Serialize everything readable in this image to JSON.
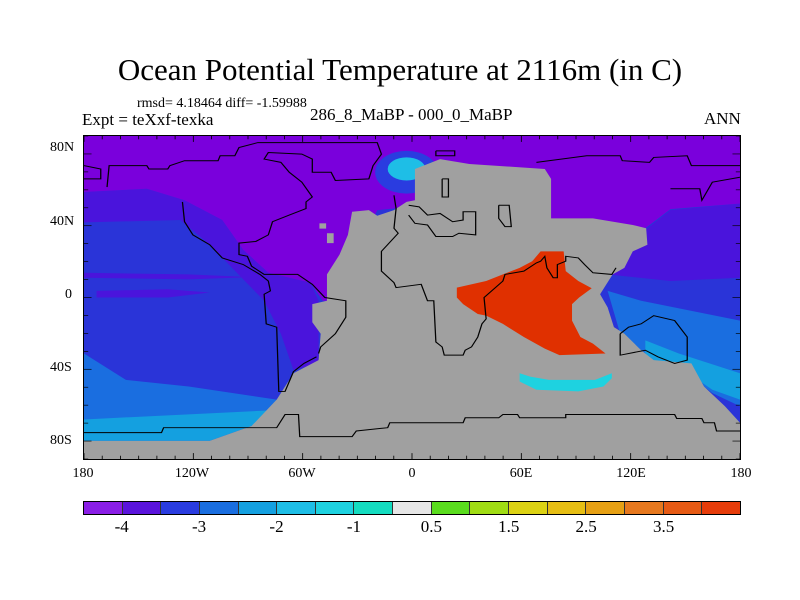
{
  "title": "Ocean Potential Temperature at 2116m (in C)",
  "stats": "rmsd= 4.18464 diff= -1.59988",
  "experiment": "Expt = teXxf-texka",
  "cases": "286_8_MaBP - 000_0_MaBP",
  "season": "ANN",
  "x_ticks": [
    "180",
    "120W",
    "60W",
    "0",
    "60E",
    "120E",
    "180"
  ],
  "y_ticks": [
    "80N",
    "40N",
    "0",
    "40S",
    "80S"
  ],
  "colorbar": {
    "levels": [
      -4,
      -3.5,
      -3,
      -2.5,
      -2,
      -1.5,
      -1,
      -0.5,
      0.5,
      1,
      1.5,
      2,
      2.5,
      3,
      3.5
    ],
    "labels": [
      "-4",
      "-3",
      "-2",
      "-1",
      "0.5",
      "1.5",
      "2.5",
      "3.5"
    ],
    "colors": [
      "#8a1ee6",
      "#5a14dc",
      "#2a3ce0",
      "#1a6ee0",
      "#14a0e0",
      "#1ebee6",
      "#1ed2e0",
      "#14dcc0",
      "#e6e6e6",
      "#5adc1e",
      "#a0dc14",
      "#dcd214",
      "#e6be14",
      "#e6a014",
      "#e6781e",
      "#e65a14",
      "#e63c0a"
    ]
  },
  "land_color": "#a0a0a0"
}
